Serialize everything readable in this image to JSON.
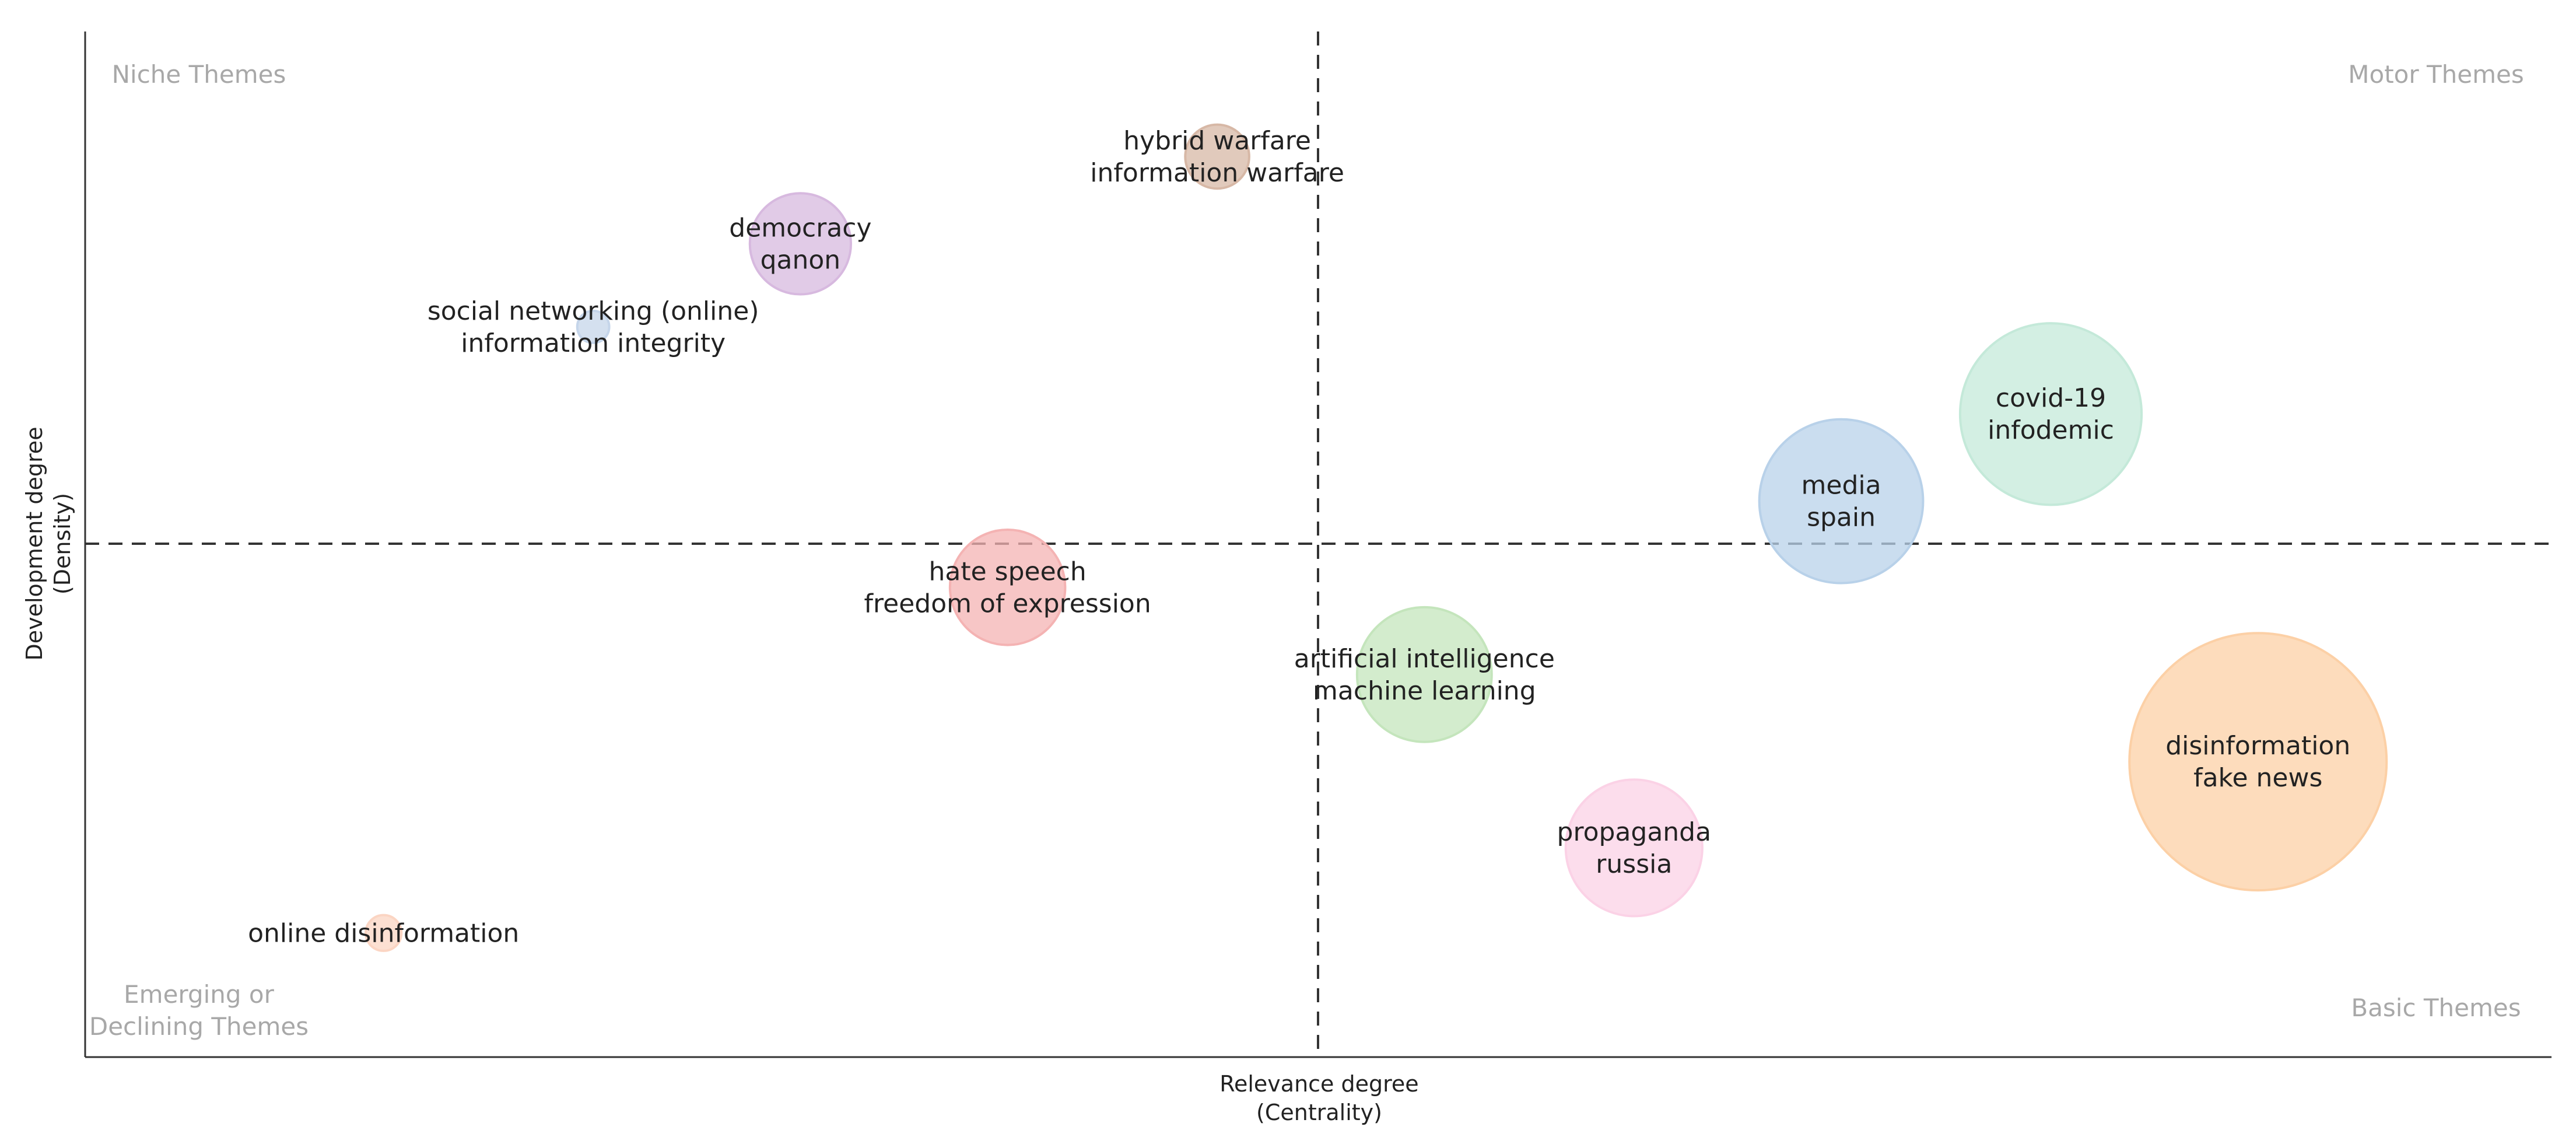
{
  "chart_data": {
    "type": "scatter",
    "title": "",
    "xlabel": [
      "Relevance degree",
      "(Centrality)"
    ],
    "ylabel": [
      "Development degree",
      "(Density)"
    ],
    "grid": false,
    "legend": "none",
    "quadrants": {
      "top_left": [
        "Niche Themes"
      ],
      "top_right": [
        "Motor Themes"
      ],
      "bottom_left": [
        "Emerging or",
        "Declining Themes"
      ],
      "bottom_right": [
        "Basic Themes"
      ]
    },
    "points": [
      {
        "name": "hybrid-warfare",
        "labels": [
          "hybrid warfare",
          "information warfare"
        ],
        "x": 0.459,
        "y": 0.878,
        "size": 0.16,
        "color": "#d7b8a6"
      },
      {
        "name": "democracy",
        "labels": [
          "democracy",
          "qanon"
        ],
        "x": 0.29,
        "y": 0.793,
        "size": 0.4,
        "color": "#d7b9df"
      },
      {
        "name": "social-networking",
        "labels": [
          "social networking (online)",
          "information integrity"
        ],
        "x": 0.206,
        "y": 0.712,
        "size": 0.04,
        "color": "#c5d5ea"
      },
      {
        "name": "covid-19",
        "labels": [
          "covid-19",
          "infodemic"
        ],
        "x": 0.797,
        "y": 0.627,
        "size": 1.29,
        "color": "#c4e9d9"
      },
      {
        "name": "media",
        "labels": [
          "media",
          "spain"
        ],
        "x": 0.712,
        "y": 0.542,
        "size": 1.05,
        "color": "#b8d1e9"
      },
      {
        "name": "hate-speech",
        "labels": [
          "hate speech",
          "freedom of expression"
        ],
        "x": 0.374,
        "y": 0.458,
        "size": 0.52,
        "color": "#f4b3b3"
      },
      {
        "name": "artificial-intelligence",
        "labels": [
          "artificial intelligence",
          "machine learning"
        ],
        "x": 0.543,
        "y": 0.373,
        "size": 0.71,
        "color": "#c4e5bc"
      },
      {
        "name": "disinformation",
        "labels": [
          "disinformation",
          "fake news"
        ],
        "x": 0.881,
        "y": 0.288,
        "size": 2.59,
        "color": "#fcd0a6"
      },
      {
        "name": "propaganda",
        "labels": [
          "propaganda",
          "russia"
        ],
        "x": 0.628,
        "y": 0.204,
        "size": 0.73,
        "color": "#fbd2e6"
      },
      {
        "name": "online-disinformation",
        "labels": [
          "online disinformation"
        ],
        "x": 0.121,
        "y": 0.121,
        "size": 0.05,
        "color": "#fbd5c3"
      }
    ]
  }
}
